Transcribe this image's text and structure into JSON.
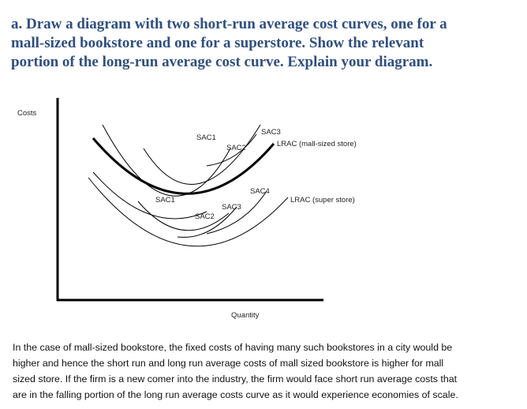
{
  "question": {
    "lines": [
      "a. Draw a diagram with two short-run average cost curves, one for a",
      "mall-sized bookstore and one for a superstore. Show the relevant",
      "portion of the long-run average cost curve. Explain your diagram."
    ]
  },
  "diagram": {
    "y_axis_label": "Costs",
    "x_axis_label": "Quantity",
    "upper_labels": [
      "SAC1",
      "SAC2",
      "SAC3",
      "LRAC (mall-sized store)"
    ],
    "lower_labels": [
      "SAC1",
      "SAC2",
      "SAC3",
      "SAC4",
      "LRAC (super store)"
    ]
  },
  "answer": {
    "lines": [
      "In the case of mall-sized bookstore, the fixed costs of having many such bookstores in a city would be",
      "higher and hence the short run and long run average costs of mall sized bookstore is higher for mall",
      "sized store. If the firm is a new comer into the industry, the firm would face short run average costs that",
      "are in the falling portion of the long run average costs curve as it would experience economies of scale."
    ]
  }
}
